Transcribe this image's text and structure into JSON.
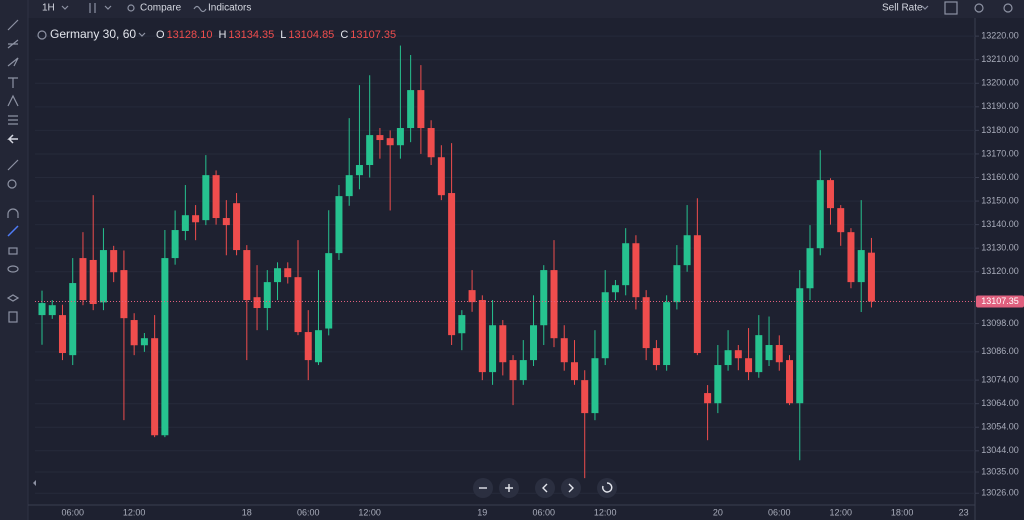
{
  "toolbar": {
    "interval": "1H",
    "compare": "Compare",
    "indicators": "Indicators",
    "rate": "Sell Rate"
  },
  "chart_data": {
    "type": "candlestick",
    "title": "Germany 30, 60",
    "ohlc_header": {
      "labels": [
        "O",
        "H",
        "L",
        "C"
      ],
      "values": [
        13128.1,
        13134.35,
        13104.85,
        13107.35
      ],
      "value_labels": [
        "13128.10",
        "13134.35",
        "13104.85",
        "13107.35"
      ]
    },
    "last_price": {
      "value": 13107.35,
      "label": "13107.35"
    },
    "up_color": "#26c28f",
    "down_color": "#ef4d4d",
    "last_price_color": "#e0607e",
    "grid": true,
    "categories": [
      null,
      null,
      null,
      "06:00",
      null,
      null,
      null,
      null,
      null,
      "12:00",
      null,
      null,
      null,
      null,
      null,
      null,
      null,
      null,
      null,
      null,
      "18",
      null,
      null,
      null,
      null,
      null,
      "06:00",
      null,
      null,
      null,
      null,
      null,
      "12:00",
      null,
      null,
      null,
      null,
      null,
      null,
      null,
      null,
      null,
      null,
      "19",
      null,
      null,
      null,
      null,
      null,
      "06:00",
      null,
      null,
      null,
      null,
      null,
      "12:00",
      null,
      null,
      null,
      null,
      null,
      null,
      null,
      null,
      null,
      null,
      "20",
      null,
      null,
      null,
      null,
      null,
      "06:00",
      null,
      null,
      null,
      null,
      null,
      "12:00",
      null,
      null,
      null,
      null,
      null,
      "18:00",
      null,
      null,
      null,
      null,
      null,
      "23"
    ],
    "open": [
      13101.6,
      13101.6,
      13101.6,
      13084.6,
      13125.8,
      13125,
      13107,
      13129.2,
      13120.7,
      13099.5,
      13088.8,
      13091.8,
      13050.6,
      13125.8,
      13137.3,
      13144,
      13141.9,
      13161,
      13142.8,
      13149.1,
      13129.2,
      13109.2,
      13104.6,
      13115.6,
      13121.5,
      13117.7,
      13094.4,
      13081.6,
      13095.9,
      13127.9,
      13152.1,
      13161,
      13165.3,
      13178,
      13176.7,
      13173.7,
      13181,
      13197.1,
      13181,
      13168.6,
      13153.4,
      13093.9,
      13112.2,
      13108,
      13077.4,
      13097.3,
      13082.5,
      13074,
      13082.5,
      13097.3,
      13120.7,
      13091.8,
      13081.6,
      13074,
      13060,
      13083.3,
      13111.3,
      13114.3,
      13132.1,
      13109.2,
      13087.6,
      13080.4,
      13107.1,
      13122.8,
      13135.5,
      13068.5,
      13064.2,
      13080.4,
      13086.7,
      13083.3,
      13077.4,
      13082.5,
      13088.9,
      13082.5,
      13064.2,
      13113,
      13130,
      13158.9,
      13147,
      13136.8,
      13115.6,
      13128.1,
      null,
      null,
      null,
      null,
      null,
      null,
      null,
      null,
      null
    ],
    "high": [
      13112,
      13108,
      13106,
      13125.8,
      13136.8,
      13152.5,
      13138.5,
      13131,
      13129,
      13102.4,
      13094,
      13101.6,
      13137.7,
      13146,
      13156.8,
      13148.3,
      13169.5,
      13163,
      13150.4,
      13153.4,
      13131.3,
      13122.8,
      13120.7,
      13124,
      13124,
      13133.4,
      13103.7,
      13120.7,
      13146.1,
      13156.8,
      13185.2,
      13199.2,
      13203.4,
      13181,
      13180,
      13216,
      13212,
      13207.7,
      13184.3,
      13173.7,
      13174.6,
      13103.7,
      13120.7,
      13110,
      13108,
      13099.5,
      13084.6,
      13091,
      13110,
      13122.8,
      13133.4,
      13097.3,
      13091,
      13078.2,
      13095.2,
      13120.7,
      13116.5,
      13138.5,
      13135.5,
      13112.2,
      13091,
      13110,
      13131.3,
      13148.3,
      13151.2,
      13071.9,
      13088.9,
      13095.2,
      13088.9,
      13096.1,
      13101.6,
      13101,
      13093,
      13084.6,
      13120.7,
      13139.8,
      13171.6,
      13159.7,
      13148.3,
      13138.5,
      13150.4,
      13134.35,
      null,
      null,
      null,
      null,
      null,
      null,
      null,
      null,
      null
    ],
    "low": [
      13089,
      13100,
      13082.5,
      13080.4,
      13105.8,
      13103.7,
      13103.7,
      13115.6,
      13057,
      13084.6,
      13086,
      13049.8,
      13049.8,
      13123,
      13133.4,
      13133.4,
      13139.8,
      13140,
      13127,
      13127,
      13082.5,
      13095.2,
      13095.2,
      13108,
      13115,
      13093.1,
      13074,
      13080.4,
      13093,
      13125,
      13148,
      13155,
      13160,
      13168,
      13146,
      13168,
      13175,
      13170,
      13165.3,
      13150.4,
      13088.9,
      13086.7,
      13103,
      13074,
      13072,
      13076,
      13063.4,
      13072,
      13080,
      13088.9,
      13088,
      13078,
      13072,
      13032.4,
      13057,
      13080.4,
      13108,
      13110,
      13104,
      13082.5,
      13078.2,
      13078,
      13104,
      13120,
      13084.6,
      13048.5,
      13060,
      13078,
      13078.2,
      13074,
      13075,
      13080,
      13078,
      13063.4,
      13040,
      13108,
      13127,
      13140,
      13131,
      13113,
      13102.9,
      13104.85,
      null,
      null,
      null,
      null,
      null,
      null,
      null,
      null,
      null
    ],
    "close": [
      13106.7,
      13105.8,
      13085.5,
      13115.2,
      13108,
      13106.3,
      13129.2,
      13119.8,
      13100.3,
      13088.8,
      13091.8,
      13050.6,
      13125.8,
      13137.7,
      13144,
      13141,
      13161,
      13142.8,
      13139.8,
      13129.2,
      13108,
      13104.6,
      13115.6,
      13121.5,
      13117.7,
      13094.4,
      13082.5,
      13095.2,
      13127.9,
      13152.1,
      13161,
      13165.3,
      13178,
      13175.9,
      13173.7,
      13181,
      13197.1,
      13181,
      13168.6,
      13152.5,
      13093.1,
      13101.6,
      13107.1,
      13077.4,
      13097.3,
      13081.6,
      13074,
      13082.5,
      13097.3,
      13120.7,
      13091.8,
      13081.6,
      13074,
      13060,
      13083.3,
      13111.3,
      13114.3,
      13132.1,
      13109.2,
      13087.6,
      13080.4,
      13107.1,
      13122.8,
      13135.5,
      13085.5,
      13064.2,
      13080.4,
      13086.7,
      13083.3,
      13077.4,
      13093.1,
      13088.9,
      13081.6,
      13064.2,
      13113,
      13130,
      13158.9,
      13147,
      13136.8,
      13115.6,
      13129.2,
      13107.35,
      null,
      null,
      null,
      null,
      null,
      null,
      null,
      null,
      null
    ],
    "ylim": [
      13021,
      13226
    ],
    "yticks": [
      {
        "value": 13220,
        "label": "13220.00"
      },
      {
        "value": 13210,
        "label": "13210.00"
      },
      {
        "value": 13200,
        "label": "13200.00"
      },
      {
        "value": 13190,
        "label": "13190.00"
      },
      {
        "value": 13180,
        "label": "13180.00"
      },
      {
        "value": 13170,
        "label": "13170.00"
      },
      {
        "value": 13160,
        "label": "13160.00"
      },
      {
        "value": 13150,
        "label": "13150.00"
      },
      {
        "value": 13140,
        "label": "13140.00"
      },
      {
        "value": 13130,
        "label": "13130.00"
      },
      {
        "value": 13120,
        "label": "13120.00"
      },
      {
        "value": 13098,
        "label": "13098.00"
      },
      {
        "value": 13086,
        "label": "13086.00"
      },
      {
        "value": 13074,
        "label": "13074.00"
      },
      {
        "value": 13064,
        "label": "13064.00"
      },
      {
        "value": 13054,
        "label": "13054.00"
      },
      {
        "value": 13044,
        "label": "13044.00"
      },
      {
        "value": 13035,
        "label": "13035.00"
      },
      {
        "value": 13026,
        "label": "13026.00"
      }
    ]
  }
}
